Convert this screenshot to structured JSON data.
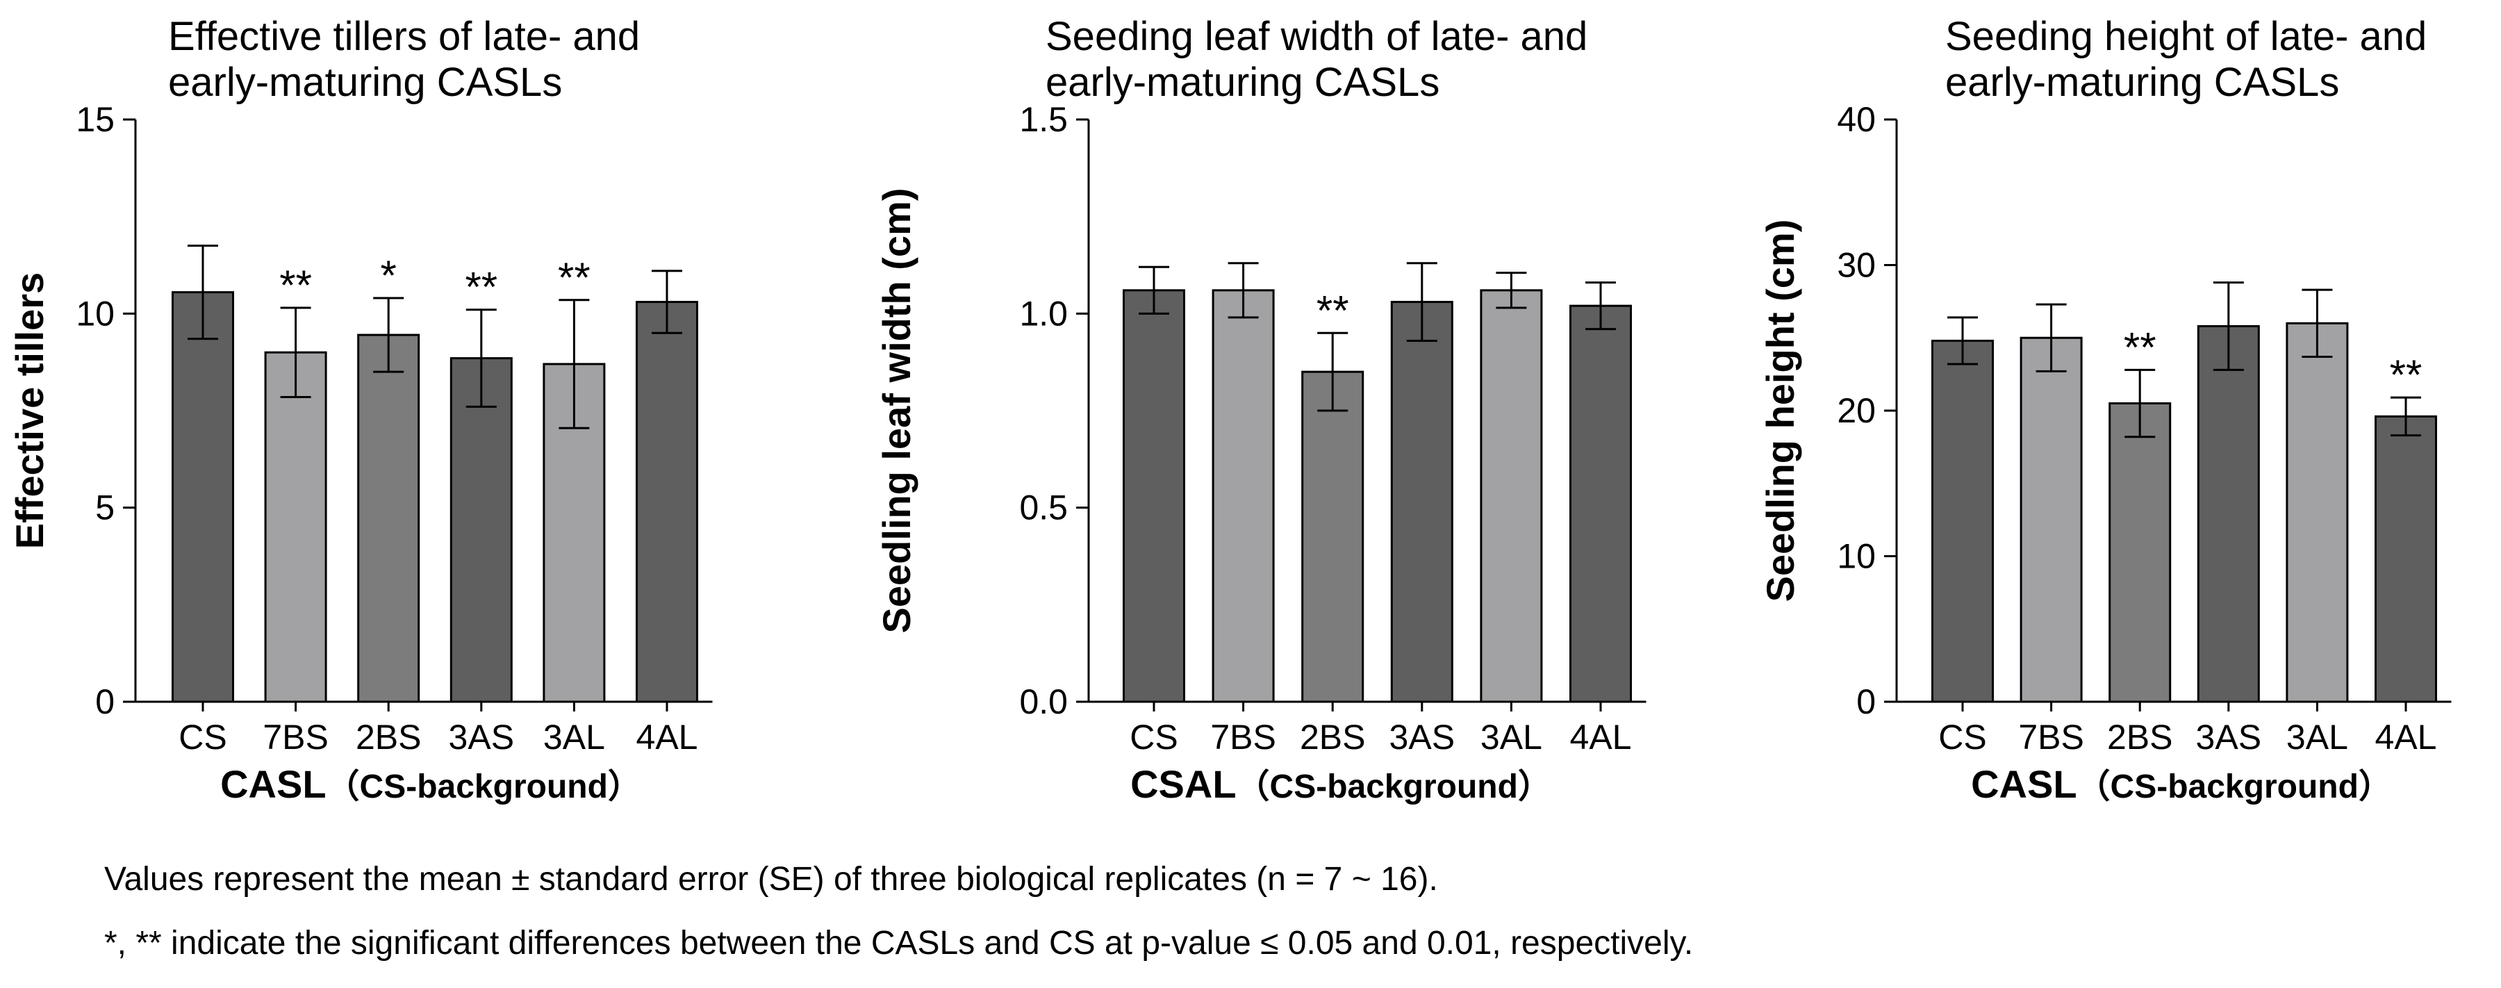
{
  "colors": {
    "dark": "#5f5f5f",
    "light": "#a2a2a4",
    "medium": "#7c7c7c",
    "stroke": "#000000"
  },
  "chart_data": [
    {
      "type": "bar",
      "title_lines": [
        "Effective tillers of late- and",
        "early-maturing CASLs"
      ],
      "ylabel": "Effective tillers",
      "xlabel_main": "CASL",
      "xlabel_sub": "（CS-background）",
      "categories": [
        "CS",
        "7BS",
        "2BS",
        "3AS",
        "3AL",
        "4AL"
      ],
      "values": [
        10.55,
        9.0,
        9.45,
        8.85,
        8.7,
        10.3
      ],
      "errors": [
        1.2,
        1.15,
        0.95,
        1.25,
        1.65,
        0.8
      ],
      "significance": [
        "",
        "**",
        "*",
        "**",
        "**",
        ""
      ],
      "bar_colors": [
        "dark",
        "light",
        "medium",
        "dark",
        "light",
        "dark"
      ],
      "ylim": [
        0,
        15
      ],
      "yticks": [
        0,
        5,
        10,
        15
      ],
      "ytick_labels": [
        "0",
        "5",
        "10",
        "15"
      ]
    },
    {
      "type": "bar",
      "title_lines": [
        "Seeding leaf width of late- and",
        "early-maturing CASLs"
      ],
      "ylabel": "Seedling leaf width (cm)",
      "xlabel_main": "CSAL",
      "xlabel_sub": "（CS-background）",
      "categories": [
        "CS",
        "7BS",
        "2BS",
        "3AS",
        "3AL",
        "4AL"
      ],
      "values": [
        1.06,
        1.06,
        0.85,
        1.03,
        1.06,
        1.02
      ],
      "errors": [
        0.06,
        0.07,
        0.1,
        0.1,
        0.045,
        0.06
      ],
      "significance": [
        "",
        "",
        "**",
        "",
        "",
        ""
      ],
      "bar_colors": [
        "dark",
        "light",
        "medium",
        "dark",
        "light",
        "dark"
      ],
      "ylim": [
        0,
        1.5
      ],
      "yticks": [
        0,
        0.5,
        1.0,
        1.5
      ],
      "ytick_labels": [
        "0.0",
        "0.5",
        "1.0",
        "1.5"
      ]
    },
    {
      "type": "bar",
      "title_lines": [
        "Seeding height of late- and",
        "early-maturing CASLs"
      ],
      "ylabel": "Seedling height (cm)",
      "xlabel_main": "CASL",
      "xlabel_sub": "（CS-background）",
      "categories": [
        "CS",
        "7BS",
        "2BS",
        "3AS",
        "3AL",
        "4AL"
      ],
      "values": [
        24.8,
        25.0,
        20.5,
        25.8,
        26.0,
        19.6
      ],
      "errors": [
        1.6,
        2.3,
        2.3,
        3.0,
        2.3,
        1.3
      ],
      "significance": [
        "",
        "",
        "**",
        "",
        "",
        "**"
      ],
      "bar_colors": [
        "dark",
        "light",
        "medium",
        "dark",
        "light",
        "dark"
      ],
      "ylim": [
        0,
        40
      ],
      "yticks": [
        0,
        10,
        20,
        30,
        40
      ],
      "ytick_labels": [
        "0",
        "10",
        "20",
        "30",
        "40"
      ]
    }
  ],
  "notes": {
    "line1": "Values represent the mean ± standard error (SE) of three biological replicates (n = 7 ~ 16).",
    "line2": "*, ** indicate the significant differences between the CASLs and CS at p-value ≤ 0.05 and 0.01, respectively."
  }
}
